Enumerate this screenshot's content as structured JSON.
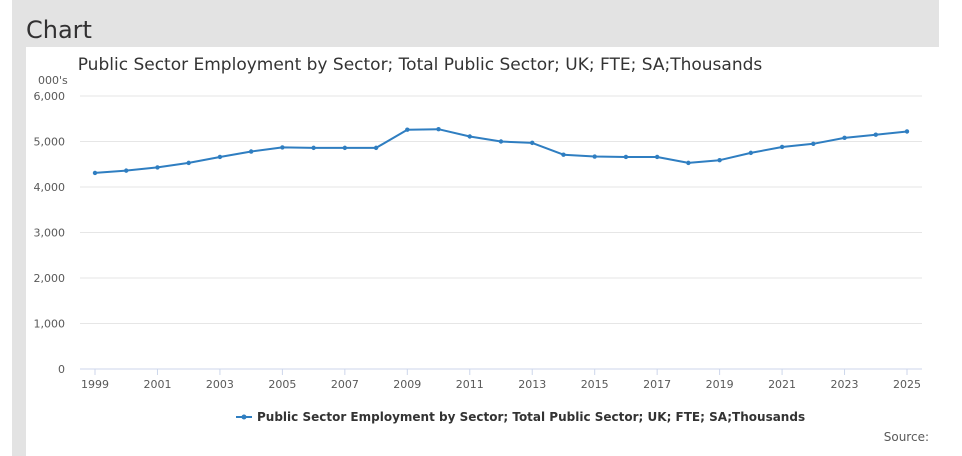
{
  "page": {
    "heading": "Chart",
    "source_label": "Source:"
  },
  "chart_data": {
    "type": "line",
    "title": "Public Sector Employment by Sector; Total Public Sector; UK; FTE; SA;Thousands",
    "y_unit_label": "000's",
    "ylim": [
      0,
      6000
    ],
    "yticks": [
      0,
      1000,
      2000,
      3000,
      4000,
      5000,
      6000
    ],
    "ytick_labels": [
      "0",
      "1,000",
      "2,000",
      "3,000",
      "4,000",
      "5,000",
      "6,000"
    ],
    "xlim": [
      1999,
      2025
    ],
    "xticks": [
      1999,
      2001,
      2003,
      2005,
      2007,
      2009,
      2011,
      2013,
      2015,
      2017,
      2019,
      2021,
      2023,
      2025
    ],
    "grid": true,
    "legend_position": "bottom-center",
    "color": "#2f7ec1",
    "series": [
      {
        "name": "Public Sector Employment by Sector; Total Public Sector; UK; FTE; SA;Thousands",
        "x": [
          1999,
          2000,
          2001,
          2002,
          2003,
          2004,
          2005,
          2006,
          2007,
          2008,
          2009,
          2010,
          2011,
          2012,
          2013,
          2014,
          2015,
          2016,
          2017,
          2018,
          2019,
          2020,
          2021,
          2022,
          2023,
          2024,
          2025
        ],
        "values": [
          4310,
          4360,
          4430,
          4530,
          4660,
          4780,
          4870,
          4860,
          4860,
          4860,
          5260,
          5270,
          5110,
          5000,
          4970,
          4710,
          4670,
          4660,
          4660,
          4530,
          4590,
          4750,
          4880,
          4950,
          5080,
          5150,
          5220
        ]
      }
    ]
  }
}
